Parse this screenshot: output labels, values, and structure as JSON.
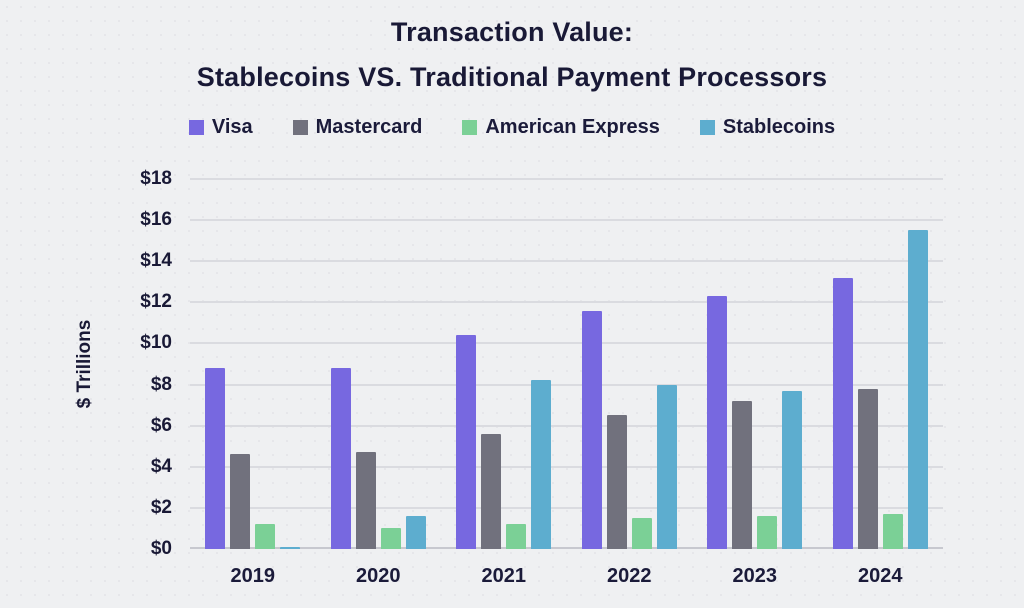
{
  "title": {
    "line1": "Transaction Value:",
    "line2": "Stablecoins VS. Traditional Payment Processors"
  },
  "colors": {
    "background": "#eff0f2",
    "text": "#1b1b3a",
    "gridline": "#dadbe0"
  },
  "chart_data": {
    "type": "bar",
    "title": "Transaction Value: Stablecoins VS. Traditional Payment Processors",
    "categories": [
      "2019",
      "2020",
      "2021",
      "2022",
      "2023",
      "2024"
    ],
    "series": [
      {
        "name": "Visa",
        "color": "#7768e0",
        "values": [
          8.8,
          8.8,
          10.4,
          11.6,
          12.3,
          13.2
        ]
      },
      {
        "name": "Mastercard",
        "color": "#71717d",
        "values": [
          4.6,
          4.7,
          5.6,
          6.5,
          7.2,
          7.8
        ]
      },
      {
        "name": "American Express",
        "color": "#7bd096",
        "values": [
          1.2,
          1.0,
          1.2,
          1.5,
          1.6,
          1.7
        ]
      },
      {
        "name": "Stablecoins",
        "color": "#5dadcf",
        "values": [
          0.1,
          1.6,
          8.2,
          8.0,
          7.7,
          15.5
        ]
      }
    ],
    "xlabel": "",
    "ylabel": "$ Trillions",
    "ylim": [
      0,
      18
    ],
    "ytick_step": 2,
    "ytick_labels": [
      "$0",
      "$2",
      "$4",
      "$6",
      "$8",
      "$10",
      "$12",
      "$14",
      "$16",
      "$18"
    ],
    "grid": true,
    "legend_position": "top"
  }
}
